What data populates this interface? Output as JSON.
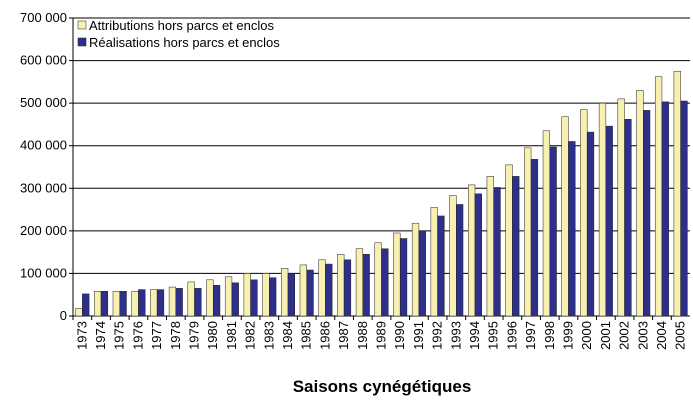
{
  "chart_data": {
    "type": "bar",
    "x_label": "Saisons cynégétiques",
    "categories": [
      "1973",
      "1974",
      "1975",
      "1976",
      "1977",
      "1978",
      "1979",
      "1980",
      "1981",
      "1982",
      "1983",
      "1984",
      "1985",
      "1986",
      "1987",
      "1988",
      "1989",
      "1990",
      "1991",
      "1992",
      "1993",
      "1994",
      "1995",
      "1996",
      "1997",
      "1998",
      "1999",
      "2000",
      "2001",
      "2002",
      "2003",
      "2004",
      "2005"
    ],
    "series": [
      {
        "name": "Attributions hors parcs et enclos",
        "color": "#f7f0b0",
        "values": [
          18000,
          58000,
          58000,
          58000,
          62000,
          68000,
          80000,
          85000,
          92000,
          100000,
          100000,
          112000,
          120000,
          132000,
          145000,
          158000,
          172000,
          195000,
          218000,
          255000,
          283000,
          308000,
          328000,
          355000,
          395000,
          435000,
          468000,
          485000,
          500000,
          510000,
          530000,
          562000,
          575000
        ]
      },
      {
        "name": "Réalisations hors parcs et enclos",
        "color": "#2e2f8a",
        "values": [
          52000,
          58000,
          58000,
          62000,
          62000,
          65000,
          65000,
          72000,
          78000,
          85000,
          90000,
          100000,
          108000,
          122000,
          132000,
          145000,
          158000,
          182000,
          200000,
          235000,
          262000,
          287000,
          302000,
          328000,
          368000,
          397000,
          410000,
          432000,
          446000,
          462000,
          483000,
          503000,
          505000
        ]
      }
    ],
    "ylim": [
      0,
      700000
    ],
    "yticks": [
      {
        "value": 0,
        "label": "0"
      },
      {
        "value": 100000,
        "label": "100 000"
      },
      {
        "value": 200000,
        "label": "200 000"
      },
      {
        "value": 300000,
        "label": "300 000"
      },
      {
        "value": 400000,
        "label": "400 000"
      },
      {
        "value": 500000,
        "label": "500 000"
      },
      {
        "value": 600000,
        "label": "600 000"
      },
      {
        "value": 700000,
        "label": "700 000"
      }
    ],
    "grid": true,
    "legend": "top-left"
  }
}
